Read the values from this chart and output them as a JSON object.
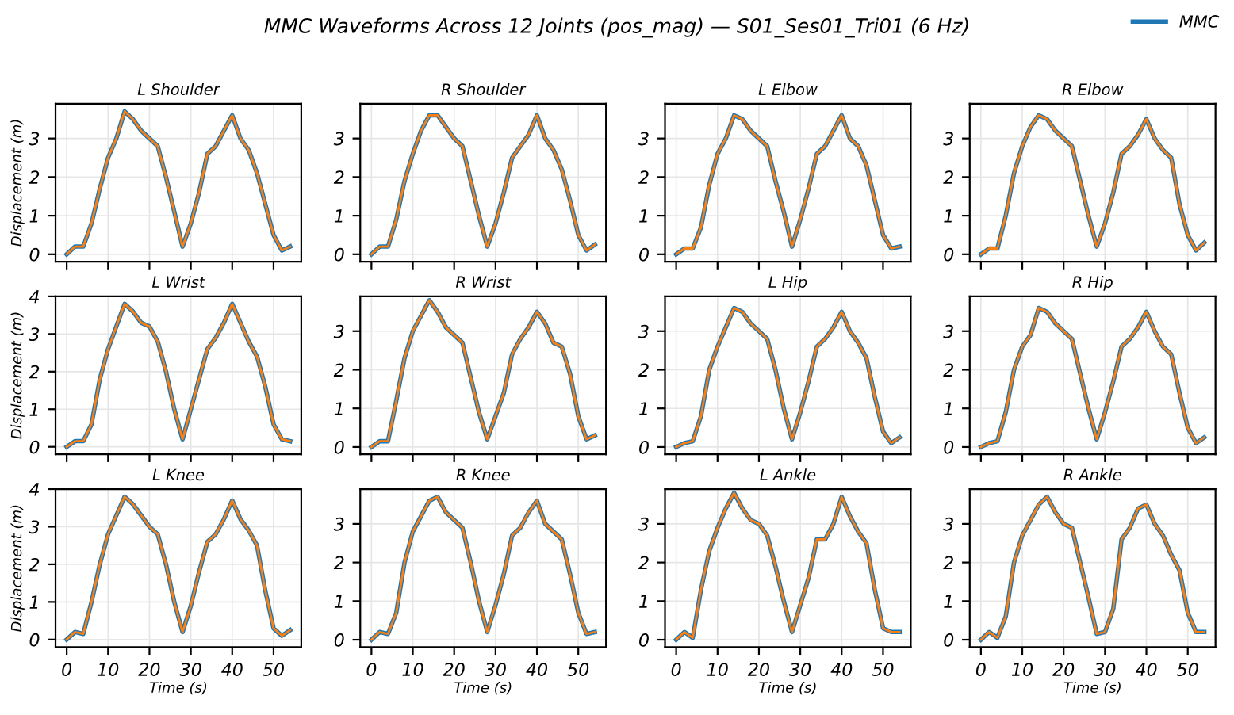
{
  "chart_data": [
    {
      "type": "line",
      "title": "MMC Waveforms Across 12 Joints (pos_mag) — S01_Ses01_Tri01 (6 Hz)",
      "subtitle": "L Shoulder",
      "ylabel": "Displacement (m)",
      "legend": "top right",
      "grid": true,
      "tick_labels": "y",
      "xlim": [
        -2.7,
        56.7
      ],
      "xticks": [
        0,
        10,
        20,
        30,
        40,
        50
      ],
      "ylim": [
        -0.19,
        3.9
      ],
      "yticks": [
        0,
        1,
        2,
        3
      ],
      "x": [
        0,
        2,
        4,
        6,
        8,
        10,
        12,
        14,
        16,
        18,
        20,
        22,
        24,
        26,
        28,
        30,
        32,
        34,
        36,
        38,
        40,
        42,
        44,
        46,
        48,
        50,
        52,
        54
      ],
      "series": [
        {
          "name": "MMC",
          "color": "#1f77b4",
          "values": [
            0,
            0.2,
            0.2,
            0.8,
            1.7,
            2.5,
            3.0,
            3.7,
            3.5,
            3.2,
            3.0,
            2.8,
            2.0,
            1.1,
            0.2,
            0.8,
            1.6,
            2.6,
            2.8,
            3.2,
            3.6,
            3.0,
            2.7,
            2.1,
            1.3,
            0.5,
            0.1,
            0.2
          ]
        },
        {
          "color": "#ff7f0e",
          "values": [
            0,
            0.2,
            0.2,
            0.8,
            1.7,
            2.5,
            3.0,
            3.7,
            3.5,
            3.2,
            3.0,
            2.8,
            2.0,
            1.1,
            0.2,
            0.8,
            1.6,
            2.6,
            2.8,
            3.2,
            3.6,
            3.0,
            2.7,
            2.1,
            1.3,
            0.5,
            0.1,
            0.2
          ]
        }
      ]
    },
    {
      "type": "line",
      "subtitle": "R Shoulder",
      "grid": true,
      "tick_labels": "y",
      "xlim": [
        -2.7,
        56.7
      ],
      "xticks": [
        0,
        10,
        20,
        30,
        40,
        50
      ],
      "ylim": [
        -0.19,
        3.9
      ],
      "yticks": [
        0,
        1,
        2,
        3
      ],
      "x": [
        0,
        2,
        4,
        6,
        8,
        10,
        12,
        14,
        16,
        18,
        20,
        22,
        24,
        26,
        28,
        30,
        32,
        34,
        36,
        38,
        40,
        42,
        44,
        46,
        48,
        50,
        52,
        54
      ],
      "series": [
        {
          "color": "#1f77b4",
          "values": [
            0,
            0.2,
            0.2,
            0.9,
            1.9,
            2.6,
            3.2,
            3.6,
            3.6,
            3.3,
            3.0,
            2.8,
            1.9,
            1.0,
            0.2,
            0.8,
            1.6,
            2.5,
            2.8,
            3.1,
            3.6,
            3.0,
            2.7,
            2.2,
            1.4,
            0.5,
            0.1,
            0.25
          ]
        },
        {
          "color": "#ff7f0e",
          "values": [
            0,
            0.2,
            0.2,
            0.9,
            1.9,
            2.6,
            3.2,
            3.6,
            3.6,
            3.3,
            3.0,
            2.8,
            1.9,
            1.0,
            0.2,
            0.8,
            1.6,
            2.5,
            2.8,
            3.1,
            3.6,
            3.0,
            2.7,
            2.2,
            1.4,
            0.5,
            0.1,
            0.25
          ]
        }
      ]
    },
    {
      "type": "line",
      "subtitle": "L Elbow",
      "grid": true,
      "tick_labels": "y",
      "xlim": [
        -2.7,
        56.7
      ],
      "xticks": [
        0,
        10,
        20,
        30,
        40,
        50
      ],
      "ylim": [
        -0.19,
        3.9
      ],
      "yticks": [
        0,
        1,
        2,
        3
      ],
      "x": [
        0,
        2,
        4,
        6,
        8,
        10,
        12,
        14,
        16,
        18,
        20,
        22,
        24,
        26,
        28,
        30,
        32,
        34,
        36,
        38,
        40,
        42,
        44,
        46,
        48,
        50,
        52,
        54
      ],
      "series": [
        {
          "color": "#1f77b4",
          "values": [
            0,
            0.15,
            0.15,
            0.7,
            1.8,
            2.6,
            3.0,
            3.6,
            3.5,
            3.2,
            3.0,
            2.8,
            1.9,
            1.1,
            0.2,
            0.9,
            1.7,
            2.6,
            2.8,
            3.2,
            3.6,
            3.0,
            2.8,
            2.3,
            1.4,
            0.5,
            0.15,
            0.2
          ]
        },
        {
          "color": "#ff7f0e",
          "values": [
            0,
            0.15,
            0.15,
            0.7,
            1.8,
            2.6,
            3.0,
            3.6,
            3.5,
            3.2,
            3.0,
            2.8,
            1.9,
            1.1,
            0.2,
            0.9,
            1.7,
            2.6,
            2.8,
            3.2,
            3.6,
            3.0,
            2.8,
            2.3,
            1.4,
            0.5,
            0.15,
            0.2
          ]
        }
      ]
    },
    {
      "type": "line",
      "subtitle": "R Elbow",
      "grid": true,
      "tick_labels": "y",
      "xlim": [
        -2.7,
        56.7
      ],
      "xticks": [
        0,
        10,
        20,
        30,
        40,
        50
      ],
      "ylim": [
        -0.19,
        3.9
      ],
      "yticks": [
        0,
        1,
        2,
        3
      ],
      "x": [
        0,
        2,
        4,
        6,
        8,
        10,
        12,
        14,
        16,
        18,
        20,
        22,
        24,
        26,
        28,
        30,
        32,
        34,
        36,
        38,
        40,
        42,
        44,
        46,
        48,
        50,
        52,
        54
      ],
      "series": [
        {
          "color": "#1f77b4",
          "values": [
            0,
            0.15,
            0.15,
            1.0,
            2.1,
            2.8,
            3.3,
            3.6,
            3.5,
            3.2,
            3.0,
            2.8,
            1.9,
            1.0,
            0.2,
            0.8,
            1.6,
            2.6,
            2.8,
            3.1,
            3.5,
            3.0,
            2.7,
            2.5,
            1.3,
            0.5,
            0.1,
            0.3
          ]
        },
        {
          "color": "#ff7f0e",
          "values": [
            0,
            0.15,
            0.15,
            1.0,
            2.1,
            2.8,
            3.3,
            3.6,
            3.5,
            3.2,
            3.0,
            2.8,
            1.9,
            1.0,
            0.2,
            0.8,
            1.6,
            2.6,
            2.8,
            3.1,
            3.5,
            3.0,
            2.7,
            2.5,
            1.3,
            0.5,
            0.1,
            0.3
          ]
        }
      ]
    },
    {
      "type": "line",
      "subtitle": "L Wrist",
      "ylabel": "Displacement (m)",
      "grid": true,
      "tick_labels": "y",
      "xlim": [
        -2.7,
        56.7
      ],
      "xticks": [
        0,
        10,
        20,
        30,
        40,
        50
      ],
      "ylim": [
        -0.2,
        4.0
      ],
      "yticks": [
        0,
        1,
        2,
        3,
        4
      ],
      "x": [
        0,
        2,
        4,
        6,
        8,
        10,
        12,
        14,
        16,
        18,
        20,
        22,
        24,
        26,
        28,
        30,
        32,
        34,
        36,
        38,
        40,
        42,
        44,
        46,
        48,
        50,
        52,
        54
      ],
      "series": [
        {
          "color": "#1f77b4",
          "values": [
            0,
            0.15,
            0.15,
            0.6,
            1.8,
            2.6,
            3.2,
            3.8,
            3.6,
            3.3,
            3.2,
            2.8,
            2.0,
            1.0,
            0.2,
            1.0,
            1.8,
            2.6,
            2.9,
            3.3,
            3.8,
            3.3,
            2.8,
            2.4,
            1.6,
            0.6,
            0.2,
            0.15
          ]
        },
        {
          "color": "#ff7f0e",
          "values": [
            0,
            0.15,
            0.15,
            0.6,
            1.8,
            2.6,
            3.2,
            3.8,
            3.6,
            3.3,
            3.2,
            2.8,
            2.0,
            1.0,
            0.2,
            1.0,
            1.8,
            2.6,
            2.9,
            3.3,
            3.8,
            3.3,
            2.8,
            2.4,
            1.6,
            0.6,
            0.2,
            0.15
          ]
        }
      ]
    },
    {
      "type": "line",
      "subtitle": "R Wrist",
      "grid": true,
      "tick_labels": "y",
      "xlim": [
        -2.7,
        56.7
      ],
      "xticks": [
        0,
        10,
        20,
        30,
        40,
        50
      ],
      "ylim": [
        -0.19,
        3.9
      ],
      "yticks": [
        0,
        1,
        2,
        3
      ],
      "x": [
        0,
        2,
        4,
        6,
        8,
        10,
        12,
        14,
        16,
        18,
        20,
        22,
        24,
        26,
        28,
        30,
        32,
        34,
        36,
        38,
        40,
        42,
        44,
        46,
        48,
        50,
        52,
        54
      ],
      "series": [
        {
          "color": "#1f77b4",
          "values": [
            0,
            0.15,
            0.15,
            1.2,
            2.3,
            3.0,
            3.4,
            3.8,
            3.5,
            3.1,
            2.9,
            2.7,
            1.8,
            0.9,
            0.2,
            0.8,
            1.4,
            2.4,
            2.8,
            3.1,
            3.5,
            3.2,
            2.7,
            2.6,
            1.9,
            0.8,
            0.2,
            0.3
          ]
        },
        {
          "color": "#ff7f0e",
          "values": [
            0,
            0.15,
            0.15,
            1.2,
            2.3,
            3.0,
            3.4,
            3.8,
            3.5,
            3.1,
            2.9,
            2.7,
            1.8,
            0.9,
            0.2,
            0.8,
            1.4,
            2.4,
            2.8,
            3.1,
            3.5,
            3.2,
            2.7,
            2.6,
            1.9,
            0.8,
            0.2,
            0.3
          ]
        }
      ]
    },
    {
      "type": "line",
      "subtitle": "L Hip",
      "grid": true,
      "tick_labels": "y",
      "xlim": [
        -2.7,
        56.7
      ],
      "xticks": [
        0,
        10,
        20,
        30,
        40,
        50
      ],
      "ylim": [
        -0.19,
        3.9
      ],
      "yticks": [
        0,
        1,
        2,
        3
      ],
      "x": [
        0,
        2,
        4,
        6,
        8,
        10,
        12,
        14,
        16,
        18,
        20,
        22,
        24,
        26,
        28,
        30,
        32,
        34,
        36,
        38,
        40,
        42,
        44,
        46,
        48,
        50,
        52,
        54
      ],
      "series": [
        {
          "color": "#1f77b4",
          "values": [
            0,
            0.1,
            0.15,
            0.8,
            2.0,
            2.6,
            3.1,
            3.6,
            3.5,
            3.2,
            3.0,
            2.8,
            2.0,
            1.0,
            0.2,
            0.9,
            1.7,
            2.6,
            2.8,
            3.1,
            3.5,
            3.0,
            2.7,
            2.3,
            1.3,
            0.4,
            0.1,
            0.25
          ]
        },
        {
          "color": "#ff7f0e",
          "values": [
            0,
            0.1,
            0.15,
            0.8,
            2.0,
            2.6,
            3.1,
            3.6,
            3.5,
            3.2,
            3.0,
            2.8,
            2.0,
            1.0,
            0.2,
            0.9,
            1.7,
            2.6,
            2.8,
            3.1,
            3.5,
            3.0,
            2.7,
            2.3,
            1.3,
            0.4,
            0.1,
            0.25
          ]
        }
      ]
    },
    {
      "type": "line",
      "subtitle": "R Hip",
      "grid": true,
      "tick_labels": "y",
      "xlim": [
        -2.7,
        56.7
      ],
      "xticks": [
        0,
        10,
        20,
        30,
        40,
        50
      ],
      "ylim": [
        -0.19,
        3.9
      ],
      "yticks": [
        0,
        1,
        2,
        3
      ],
      "x": [
        0,
        2,
        4,
        6,
        8,
        10,
        12,
        14,
        16,
        18,
        20,
        22,
        24,
        26,
        28,
        30,
        32,
        34,
        36,
        38,
        40,
        42,
        44,
        46,
        48,
        50,
        52,
        54
      ],
      "series": [
        {
          "color": "#1f77b4",
          "values": [
            0,
            0.1,
            0.15,
            0.9,
            2.0,
            2.6,
            2.9,
            3.6,
            3.5,
            3.2,
            3.0,
            2.8,
            1.9,
            1.0,
            0.2,
            0.9,
            1.7,
            2.6,
            2.8,
            3.1,
            3.5,
            3.0,
            2.6,
            2.4,
            1.4,
            0.5,
            0.1,
            0.25
          ]
        },
        {
          "color": "#ff7f0e",
          "values": [
            0,
            0.1,
            0.15,
            0.9,
            2.0,
            2.6,
            2.9,
            3.6,
            3.5,
            3.2,
            3.0,
            2.8,
            1.9,
            1.0,
            0.2,
            0.9,
            1.7,
            2.6,
            2.8,
            3.1,
            3.5,
            3.0,
            2.6,
            2.4,
            1.4,
            0.5,
            0.1,
            0.25
          ]
        }
      ]
    },
    {
      "type": "line",
      "subtitle": "L Knee",
      "xlabel": "Time (s)",
      "ylabel": "Displacement (m)",
      "grid": true,
      "xlim": [
        -2.7,
        56.7
      ],
      "xticks": [
        0,
        10,
        20,
        30,
        40,
        50
      ],
      "ylim": [
        -0.2,
        4.0
      ],
      "yticks": [
        0,
        1,
        2,
        3,
        4
      ],
      "x": [
        0,
        2,
        4,
        6,
        8,
        10,
        12,
        14,
        16,
        18,
        20,
        22,
        24,
        26,
        28,
        30,
        32,
        34,
        36,
        38,
        40,
        42,
        44,
        46,
        48,
        50,
        52,
        54
      ],
      "series": [
        {
          "color": "#1f77b4",
          "values": [
            0,
            0.2,
            0.15,
            1.0,
            2.0,
            2.8,
            3.3,
            3.8,
            3.6,
            3.3,
            3.0,
            2.8,
            2.0,
            1.0,
            0.2,
            0.9,
            1.8,
            2.6,
            2.8,
            3.2,
            3.7,
            3.2,
            2.9,
            2.5,
            1.3,
            0.3,
            0.1,
            0.25
          ]
        },
        {
          "color": "#ff7f0e",
          "values": [
            0,
            0.2,
            0.15,
            1.0,
            2.0,
            2.8,
            3.3,
            3.8,
            3.6,
            3.3,
            3.0,
            2.8,
            2.0,
            1.0,
            0.2,
            0.9,
            1.8,
            2.6,
            2.8,
            3.2,
            3.7,
            3.2,
            2.9,
            2.5,
            1.3,
            0.3,
            0.1,
            0.25
          ]
        }
      ]
    },
    {
      "type": "line",
      "subtitle": "R Knee",
      "xlabel": "Time (s)",
      "grid": true,
      "xlim": [
        -2.7,
        56.7
      ],
      "xticks": [
        0,
        10,
        20,
        30,
        40,
        50
      ],
      "ylim": [
        -0.19,
        3.9
      ],
      "yticks": [
        0,
        1,
        2,
        3
      ],
      "x": [
        0,
        2,
        4,
        6,
        8,
        10,
        12,
        14,
        16,
        18,
        20,
        22,
        24,
        26,
        28,
        30,
        32,
        34,
        36,
        38,
        40,
        42,
        44,
        46,
        48,
        50,
        52,
        54
      ],
      "series": [
        {
          "color": "#1f77b4",
          "values": [
            0,
            0.2,
            0.15,
            0.7,
            2.0,
            2.8,
            3.2,
            3.6,
            3.7,
            3.3,
            3.1,
            2.9,
            2.0,
            1.0,
            0.2,
            0.9,
            1.7,
            2.7,
            2.9,
            3.3,
            3.6,
            3.0,
            2.8,
            2.6,
            1.7,
            0.7,
            0.15,
            0.2
          ]
        },
        {
          "color": "#ff7f0e",
          "values": [
            0,
            0.2,
            0.15,
            0.7,
            2.0,
            2.8,
            3.2,
            3.6,
            3.7,
            3.3,
            3.1,
            2.9,
            2.0,
            1.0,
            0.2,
            0.9,
            1.7,
            2.7,
            2.9,
            3.3,
            3.6,
            3.0,
            2.8,
            2.6,
            1.7,
            0.7,
            0.15,
            0.2
          ]
        }
      ]
    },
    {
      "type": "line",
      "subtitle": "L Ankle",
      "xlabel": "Time (s)",
      "grid": true,
      "xlim": [
        -2.7,
        56.7
      ],
      "xticks": [
        0,
        10,
        20,
        30,
        40,
        50
      ],
      "ylim": [
        -0.19,
        3.9
      ],
      "yticks": [
        0,
        1,
        2,
        3
      ],
      "x": [
        0,
        2,
        4,
        6,
        8,
        10,
        12,
        14,
        16,
        18,
        20,
        22,
        24,
        26,
        28,
        30,
        32,
        34,
        36,
        38,
        40,
        42,
        44,
        46,
        48,
        50,
        52,
        54
      ],
      "series": [
        {
          "color": "#1f77b4",
          "values": [
            0,
            0.2,
            0.05,
            1.3,
            2.3,
            2.9,
            3.4,
            3.8,
            3.4,
            3.1,
            3.0,
            2.7,
            1.9,
            1.0,
            0.2,
            0.9,
            1.6,
            2.6,
            2.6,
            3.0,
            3.7,
            3.2,
            2.8,
            2.5,
            1.3,
            0.3,
            0.2,
            0.2
          ]
        },
        {
          "color": "#ff7f0e",
          "values": [
            0,
            0.2,
            0.05,
            1.3,
            2.3,
            2.9,
            3.4,
            3.8,
            3.4,
            3.1,
            3.0,
            2.7,
            1.9,
            1.0,
            0.2,
            0.9,
            1.6,
            2.6,
            2.6,
            3.0,
            3.7,
            3.2,
            2.8,
            2.5,
            1.3,
            0.3,
            0.2,
            0.2
          ]
        }
      ]
    },
    {
      "type": "line",
      "subtitle": "R Ankle",
      "xlabel": "Time (s)",
      "grid": true,
      "xlim": [
        -2.7,
        56.7
      ],
      "xticks": [
        0,
        10,
        20,
        30,
        40,
        50
      ],
      "ylim": [
        -0.19,
        3.9
      ],
      "yticks": [
        0,
        1,
        2,
        3
      ],
      "x": [
        0,
        2,
        4,
        6,
        8,
        10,
        12,
        14,
        16,
        18,
        20,
        22,
        24,
        26,
        28,
        30,
        32,
        34,
        36,
        38,
        40,
        42,
        44,
        46,
        48,
        50,
        52,
        54
      ],
      "series": [
        {
          "color": "#1f77b4",
          "values": [
            0,
            0.2,
            0.05,
            0.6,
            2.0,
            2.7,
            3.1,
            3.5,
            3.7,
            3.3,
            3.0,
            2.9,
            2.0,
            1.1,
            0.15,
            0.2,
            0.8,
            2.6,
            2.9,
            3.4,
            3.5,
            3.0,
            2.7,
            2.2,
            1.8,
            0.7,
            0.2,
            0.2
          ]
        },
        {
          "color": "#ff7f0e",
          "values": [
            0,
            0.2,
            0.05,
            0.6,
            2.0,
            2.7,
            3.1,
            3.5,
            3.7,
            3.3,
            3.0,
            2.9,
            2.0,
            1.1,
            0.15,
            0.2,
            0.8,
            2.6,
            2.9,
            3.4,
            3.5,
            3.0,
            2.7,
            2.2,
            1.8,
            0.7,
            0.2,
            0.2
          ]
        }
      ]
    }
  ]
}
